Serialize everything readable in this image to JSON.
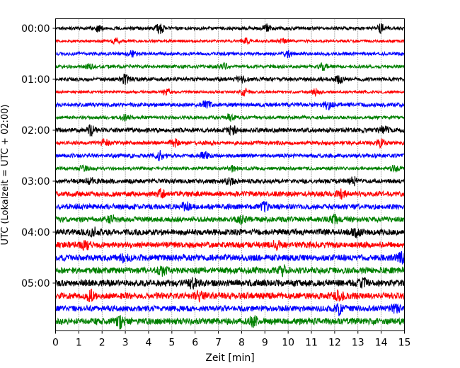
{
  "chart_data": {
    "type": "line",
    "title": "",
    "xlabel": "Zeit  [min]",
    "ylabel": "UTC (Lokalzeit = UTC + 02:00)",
    "xlim": [
      0,
      15
    ],
    "x_ticks": [
      0,
      1,
      2,
      3,
      4,
      5,
      6,
      7,
      8,
      9,
      10,
      11,
      12,
      13,
      14,
      15
    ],
    "grid": "vertical dotted",
    "rows_per_hour": 4,
    "minutes_per_row": 15,
    "y_ticks": [
      {
        "label": "00:00",
        "row": 0
      },
      {
        "label": "01:00",
        "row": 4
      },
      {
        "label": "02:00",
        "row": 8
      },
      {
        "label": "03:00",
        "row": 12
      },
      {
        "label": "04:00",
        "row": 16
      },
      {
        "label": "05:00",
        "row": 20
      }
    ],
    "series": [
      {
        "row": 0,
        "color": "#000000",
        "amplitude": 0.25,
        "bursts": [
          {
            "t": 1.8,
            "a": 0.45
          },
          {
            "t": 4.5,
            "a": 0.65
          },
          {
            "t": 9.1,
            "a": 0.5
          },
          {
            "t": 14.0,
            "a": 0.55
          }
        ]
      },
      {
        "row": 1,
        "color": "#ff0000",
        "amplitude": 0.2,
        "bursts": [
          {
            "t": 2.6,
            "a": 0.35
          },
          {
            "t": 8.2,
            "a": 0.4
          },
          {
            "t": 9.8,
            "a": 0.4
          }
        ]
      },
      {
        "row": 2,
        "color": "#0000ff",
        "amplitude": 0.25,
        "bursts": [
          {
            "t": 3.3,
            "a": 0.4
          },
          {
            "t": 10.0,
            "a": 0.5
          }
        ]
      },
      {
        "row": 3,
        "color": "#008000",
        "amplitude": 0.25,
        "bursts": [
          {
            "t": 1.5,
            "a": 0.35
          },
          {
            "t": 7.2,
            "a": 0.45
          },
          {
            "t": 11.5,
            "a": 0.5
          }
        ]
      },
      {
        "row": 4,
        "color": "#000000",
        "amplitude": 0.3,
        "bursts": [
          {
            "t": 3.0,
            "a": 0.65
          },
          {
            "t": 8.0,
            "a": 0.5
          },
          {
            "t": 12.2,
            "a": 0.55
          }
        ]
      },
      {
        "row": 5,
        "color": "#ff0000",
        "amplitude": 0.2,
        "bursts": [
          {
            "t": 4.8,
            "a": 0.45
          },
          {
            "t": 8.1,
            "a": 0.5
          },
          {
            "t": 11.2,
            "a": 0.55
          }
        ]
      },
      {
        "row": 6,
        "color": "#0000ff",
        "amplitude": 0.3,
        "bursts": [
          {
            "t": 6.5,
            "a": 0.6
          },
          {
            "t": 11.7,
            "a": 0.55
          }
        ]
      },
      {
        "row": 7,
        "color": "#008000",
        "amplitude": 0.25,
        "bursts": [
          {
            "t": 3.0,
            "a": 0.4
          },
          {
            "t": 7.5,
            "a": 0.5
          }
        ]
      },
      {
        "row": 8,
        "color": "#000000",
        "amplitude": 0.35,
        "bursts": [
          {
            "t": 1.5,
            "a": 0.7
          },
          {
            "t": 7.6,
            "a": 0.5
          },
          {
            "t": 14.1,
            "a": 0.55
          }
        ]
      },
      {
        "row": 9,
        "color": "#ff0000",
        "amplitude": 0.3,
        "bursts": [
          {
            "t": 2.1,
            "a": 0.45
          },
          {
            "t": 5.1,
            "a": 0.5
          },
          {
            "t": 14.0,
            "a": 0.5
          }
        ]
      },
      {
        "row": 10,
        "color": "#0000ff",
        "amplitude": 0.3,
        "bursts": [
          {
            "t": 4.5,
            "a": 0.65
          },
          {
            "t": 6.4,
            "a": 0.5
          }
        ]
      },
      {
        "row": 11,
        "color": "#008000",
        "amplitude": 0.25,
        "bursts": [
          {
            "t": 1.2,
            "a": 0.4
          },
          {
            "t": 7.6,
            "a": 0.4
          },
          {
            "t": 14.6,
            "a": 0.45
          }
        ]
      },
      {
        "row": 12,
        "color": "#000000",
        "amplitude": 0.35,
        "bursts": [
          {
            "t": 1.5,
            "a": 0.5
          },
          {
            "t": 7.5,
            "a": 0.5
          },
          {
            "t": 12.8,
            "a": 0.5
          }
        ]
      },
      {
        "row": 13,
        "color": "#ff0000",
        "amplitude": 0.4,
        "bursts": [
          {
            "t": 4.5,
            "a": 0.55
          },
          {
            "t": 12.3,
            "a": 0.5
          }
        ]
      },
      {
        "row": 14,
        "color": "#0000ff",
        "amplitude": 0.4,
        "bursts": [
          {
            "t": 5.6,
            "a": 0.6
          },
          {
            "t": 9.0,
            "a": 0.5
          }
        ]
      },
      {
        "row": 15,
        "color": "#008000",
        "amplitude": 0.4,
        "bursts": [
          {
            "t": 2.4,
            "a": 0.5
          },
          {
            "t": 8.0,
            "a": 0.5
          },
          {
            "t": 12.0,
            "a": 0.55
          }
        ]
      },
      {
        "row": 16,
        "color": "#000000",
        "amplitude": 0.45,
        "bursts": [
          {
            "t": 1.6,
            "a": 0.6
          },
          {
            "t": 12.9,
            "a": 0.55
          }
        ]
      },
      {
        "row": 17,
        "color": "#ff0000",
        "amplitude": 0.45,
        "bursts": [
          {
            "t": 1.3,
            "a": 0.6
          },
          {
            "t": 9.5,
            "a": 0.5
          }
        ]
      },
      {
        "row": 18,
        "color": "#0000ff",
        "amplitude": 0.5,
        "bursts": [
          {
            "t": 3.0,
            "a": 0.55
          },
          {
            "t": 14.9,
            "a": 0.6
          }
        ]
      },
      {
        "row": 19,
        "color": "#008000",
        "amplitude": 0.5,
        "bursts": [
          {
            "t": 4.6,
            "a": 0.55
          },
          {
            "t": 9.8,
            "a": 0.55
          }
        ]
      },
      {
        "row": 20,
        "color": "#000000",
        "amplitude": 0.5,
        "bursts": [
          {
            "t": 5.9,
            "a": 0.6
          },
          {
            "t": 13.2,
            "a": 0.55
          }
        ]
      },
      {
        "row": 21,
        "color": "#ff0000",
        "amplitude": 0.5,
        "bursts": [
          {
            "t": 1.5,
            "a": 0.65
          },
          {
            "t": 6.2,
            "a": 0.6
          },
          {
            "t": 12.2,
            "a": 0.6
          }
        ]
      },
      {
        "row": 22,
        "color": "#0000ff",
        "amplitude": 0.45,
        "bursts": [
          {
            "t": 12.2,
            "a": 0.75
          },
          {
            "t": 14.6,
            "a": 0.55
          }
        ]
      },
      {
        "row": 23,
        "color": "#008000",
        "amplitude": 0.5,
        "bursts": [
          {
            "t": 2.8,
            "a": 0.75
          },
          {
            "t": 8.5,
            "a": 0.55
          }
        ]
      }
    ]
  }
}
